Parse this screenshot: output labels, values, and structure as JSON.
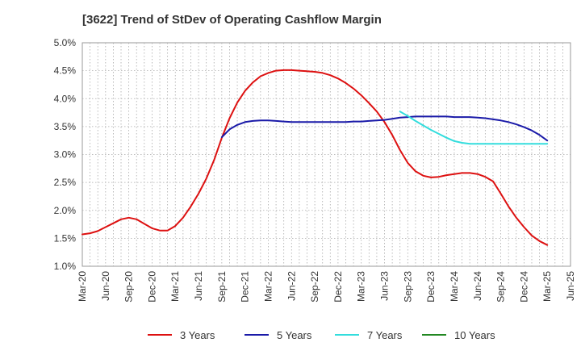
{
  "chart_data": {
    "type": "line",
    "title": "[3622]  Trend of StDev of Operating Cashflow Margin",
    "xlabel": "",
    "ylabel": "",
    "x_ticks": [
      "Mar-20",
      "Jun-20",
      "Sep-20",
      "Dec-20",
      "Mar-21",
      "Jun-21",
      "Sep-21",
      "Dec-21",
      "Mar-22",
      "Jun-22",
      "Sep-22",
      "Dec-22",
      "Mar-23",
      "Jun-23",
      "Sep-23",
      "Dec-23",
      "Mar-24",
      "Jun-24",
      "Sep-24",
      "Dec-24",
      "Mar-25",
      "Jun-25"
    ],
    "y_ticks": [
      "1.0%",
      "1.5%",
      "2.0%",
      "2.5%",
      "3.0%",
      "3.5%",
      "4.0%",
      "4.5%",
      "5.0%"
    ],
    "ylim": [
      1.0,
      5.0
    ],
    "grid": true,
    "legend_position": "bottom",
    "series": [
      {
        "name": "3 Years",
        "color": "#dd1111",
        "points": [
          [
            "Mar-20",
            1.57
          ],
          [
            "Apr-20",
            1.59
          ],
          [
            "May-20",
            1.63
          ],
          [
            "Jun-20",
            1.7
          ],
          [
            "Jul-20",
            1.77
          ],
          [
            "Aug-20",
            1.84
          ],
          [
            "Sep-20",
            1.87
          ],
          [
            "Oct-20",
            1.84
          ],
          [
            "Nov-20",
            1.76
          ],
          [
            "Dec-20",
            1.68
          ],
          [
            "Jan-21",
            1.64
          ],
          [
            "Feb-21",
            1.64
          ],
          [
            "Mar-21",
            1.72
          ],
          [
            "Apr-21",
            1.87
          ],
          [
            "May-21",
            2.07
          ],
          [
            "Jun-21",
            2.3
          ],
          [
            "Jul-21",
            2.57
          ],
          [
            "Aug-21",
            2.9
          ],
          [
            "Sep-21",
            3.3
          ],
          [
            "Oct-21",
            3.65
          ],
          [
            "Nov-21",
            3.93
          ],
          [
            "Dec-21",
            4.14
          ],
          [
            "Jan-22",
            4.29
          ],
          [
            "Feb-22",
            4.4
          ],
          [
            "Mar-22",
            4.46
          ],
          [
            "Apr-22",
            4.5
          ],
          [
            "May-22",
            4.51
          ],
          [
            "Jun-22",
            4.51
          ],
          [
            "Jul-22",
            4.5
          ],
          [
            "Aug-22",
            4.49
          ],
          [
            "Sep-22",
            4.48
          ],
          [
            "Oct-22",
            4.46
          ],
          [
            "Nov-22",
            4.42
          ],
          [
            "Dec-22",
            4.36
          ],
          [
            "Jan-23",
            4.28
          ],
          [
            "Feb-23",
            4.18
          ],
          [
            "Mar-23",
            4.06
          ],
          [
            "Apr-23",
            3.92
          ],
          [
            "May-23",
            3.77
          ],
          [
            "Jun-23",
            3.58
          ],
          [
            "Jul-23",
            3.35
          ],
          [
            "Aug-23",
            3.08
          ],
          [
            "Sep-23",
            2.85
          ],
          [
            "Oct-23",
            2.7
          ],
          [
            "Nov-23",
            2.62
          ],
          [
            "Dec-23",
            2.59
          ],
          [
            "Jan-24",
            2.6
          ],
          [
            "Feb-24",
            2.63
          ],
          [
            "Mar-24",
            2.65
          ],
          [
            "Apr-24",
            2.67
          ],
          [
            "May-24",
            2.67
          ],
          [
            "Jun-24",
            2.65
          ],
          [
            "Jul-24",
            2.6
          ],
          [
            "Aug-24",
            2.52
          ],
          [
            "Sep-24",
            2.3
          ],
          [
            "Oct-24",
            2.07
          ],
          [
            "Nov-24",
            1.87
          ],
          [
            "Dec-24",
            1.7
          ],
          [
            "Jan-25",
            1.55
          ],
          [
            "Feb-25",
            1.45
          ],
          [
            "Mar-25",
            1.38
          ]
        ]
      },
      {
        "name": "5 Years",
        "color": "#1a1aa8",
        "points": [
          [
            "Sep-21",
            3.31
          ],
          [
            "Oct-21",
            3.45
          ],
          [
            "Nov-21",
            3.53
          ],
          [
            "Dec-21",
            3.58
          ],
          [
            "Jan-22",
            3.6
          ],
          [
            "Feb-22",
            3.61
          ],
          [
            "Mar-22",
            3.61
          ],
          [
            "Apr-22",
            3.6
          ],
          [
            "May-22",
            3.59
          ],
          [
            "Jun-22",
            3.58
          ],
          [
            "Jul-22",
            3.58
          ],
          [
            "Aug-22",
            3.58
          ],
          [
            "Sep-22",
            3.58
          ],
          [
            "Oct-22",
            3.58
          ],
          [
            "Nov-22",
            3.58
          ],
          [
            "Dec-22",
            3.58
          ],
          [
            "Jan-23",
            3.58
          ],
          [
            "Feb-23",
            3.59
          ],
          [
            "Mar-23",
            3.59
          ],
          [
            "Apr-23",
            3.6
          ],
          [
            "May-23",
            3.61
          ],
          [
            "Jun-23",
            3.62
          ],
          [
            "Jul-23",
            3.64
          ],
          [
            "Aug-23",
            3.66
          ],
          [
            "Sep-23",
            3.67
          ],
          [
            "Oct-23",
            3.68
          ],
          [
            "Nov-23",
            3.68
          ],
          [
            "Dec-23",
            3.68
          ],
          [
            "Jan-24",
            3.68
          ],
          [
            "Feb-24",
            3.68
          ],
          [
            "Mar-24",
            3.67
          ],
          [
            "Apr-24",
            3.67
          ],
          [
            "May-24",
            3.67
          ],
          [
            "Jun-24",
            3.66
          ],
          [
            "Jul-24",
            3.65
          ],
          [
            "Aug-24",
            3.63
          ],
          [
            "Sep-24",
            3.61
          ],
          [
            "Oct-24",
            3.58
          ],
          [
            "Nov-24",
            3.54
          ],
          [
            "Dec-24",
            3.49
          ],
          [
            "Jan-25",
            3.43
          ],
          [
            "Feb-25",
            3.35
          ],
          [
            "Mar-25",
            3.25
          ]
        ]
      },
      {
        "name": "7 Years",
        "color": "#33dddd",
        "points": [
          [
            "Aug-23",
            3.77
          ],
          [
            "Sep-23",
            3.69
          ],
          [
            "Oct-23",
            3.6
          ],
          [
            "Nov-23",
            3.52
          ],
          [
            "Dec-23",
            3.44
          ],
          [
            "Jan-24",
            3.37
          ],
          [
            "Feb-24",
            3.3
          ],
          [
            "Mar-24",
            3.24
          ],
          [
            "Apr-24",
            3.21
          ],
          [
            "May-24",
            3.19
          ],
          [
            "Jun-24",
            3.19
          ],
          [
            "Jul-24",
            3.19
          ],
          [
            "Aug-24",
            3.19
          ],
          [
            "Sep-24",
            3.19
          ],
          [
            "Oct-24",
            3.19
          ],
          [
            "Nov-24",
            3.19
          ],
          [
            "Dec-24",
            3.19
          ],
          [
            "Jan-25",
            3.19
          ],
          [
            "Feb-25",
            3.19
          ],
          [
            "Mar-25",
            3.19
          ]
        ]
      },
      {
        "name": "10 Years",
        "color": "#228822",
        "points": []
      }
    ]
  }
}
